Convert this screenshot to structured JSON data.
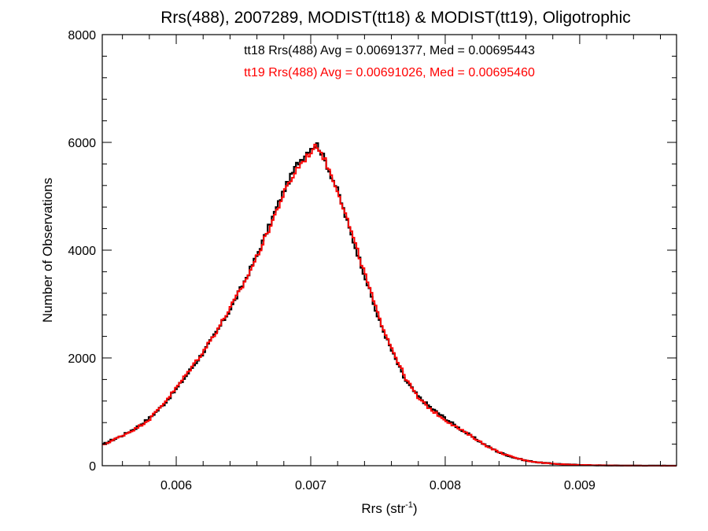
{
  "chart_data": {
    "type": "line",
    "style": "histogram-step",
    "title": "Rrs(488), 2007289, MODIST(tt18) & MODIST(tt19), Oligotrophic",
    "xlabel_base": "Rrs (str",
    "xlabel_sup": "-1",
    "xlabel_close": ")",
    "ylabel": "Number of Observations",
    "xlim": [
      0.00545,
      0.00972
    ],
    "ylim": [
      0,
      8000
    ],
    "x_ticks": [
      0.006,
      0.007,
      0.008,
      0.009
    ],
    "x_tick_labels": [
      "0.006",
      "0.007",
      "0.008",
      "0.009"
    ],
    "y_ticks": [
      0,
      2000,
      4000,
      6000,
      8000
    ],
    "y_tick_labels": [
      "0",
      "2000",
      "4000",
      "6000",
      "8000"
    ],
    "grid": false,
    "annotations": [
      {
        "text": "tt18 Rrs(488) Avg = 0.00691377, Med = 0.00695443",
        "color": "#000000"
      },
      {
        "text": "tt19 Rrs(488) Avg = 0.00691026, Med = 0.00695460",
        "color": "#ff0000"
      }
    ],
    "x": [
      0.00545,
      0.0055,
      0.0056,
      0.0057,
      0.0058,
      0.0059,
      0.006,
      0.0061,
      0.0062,
      0.0063,
      0.0064,
      0.0065,
      0.0066,
      0.0067,
      0.0068,
      0.0069,
      0.007,
      0.00705,
      0.0071,
      0.0072,
      0.0073,
      0.0074,
      0.0075,
      0.0076,
      0.0077,
      0.0078,
      0.0079,
      0.008,
      0.0081,
      0.0082,
      0.0083,
      0.0084,
      0.0085,
      0.0086,
      0.0087,
      0.0088,
      0.0089,
      0.009,
      0.0091,
      0.0092,
      0.0093,
      0.0094,
      0.0095,
      0.0096,
      0.00972
    ],
    "series": [
      {
        "name": "tt18",
        "color": "#000000",
        "values": [
          380,
          450,
          560,
          700,
          880,
          1120,
          1420,
          1760,
          2100,
          2480,
          2900,
          3380,
          3900,
          4500,
          5100,
          5600,
          5900,
          5960,
          5700,
          5100,
          4300,
          3550,
          2750,
          2150,
          1600,
          1280,
          1060,
          880,
          700,
          540,
          380,
          250,
          160,
          95,
          60,
          38,
          24,
          15,
          9,
          5,
          3,
          2,
          1,
          1,
          0
        ]
      },
      {
        "name": "tt19",
        "color": "#ff0000",
        "values": [
          370,
          440,
          560,
          690,
          860,
          1140,
          1440,
          1780,
          2120,
          2500,
          2920,
          3360,
          3880,
          4450,
          5050,
          5520,
          5820,
          5950,
          5700,
          5120,
          4350,
          3580,
          2800,
          2200,
          1650,
          1250,
          1030,
          850,
          690,
          540,
          380,
          250,
          160,
          95,
          60,
          38,
          24,
          15,
          9,
          5,
          3,
          2,
          1,
          1,
          0
        ]
      }
    ]
  }
}
